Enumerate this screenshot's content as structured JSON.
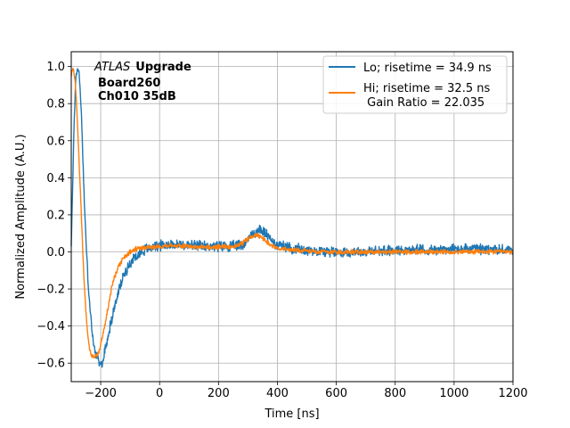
{
  "chart_data": {
    "type": "line",
    "title": "",
    "xlabel": "Time [ns]",
    "ylabel": "Normalized Amplitude (A.U.)",
    "xlim": [
      -300,
      1200
    ],
    "ylim": [
      -0.7,
      1.08
    ],
    "xticks": [
      -200,
      0,
      200,
      400,
      600,
      800,
      1000,
      1200
    ],
    "yticks": [
      -0.6,
      -0.4,
      -0.2,
      0.0,
      0.2,
      0.4,
      0.6,
      0.8,
      1.0
    ],
    "xtick_labels": [
      "−200",
      "0",
      "200",
      "400",
      "600",
      "800",
      "1000",
      "1200"
    ],
    "ytick_labels": [
      "−0.6",
      "−0.4",
      "−0.2",
      "0.0",
      "0.2",
      "0.4",
      "0.6",
      "0.8",
      "1.0"
    ],
    "grid": true,
    "legend_position": "top-right",
    "annotation": {
      "italic": "ATLAS",
      "bold": "Upgrade",
      "line2": "Board260",
      "line3": "Ch010 35dB"
    },
    "series": [
      {
        "name": "Lo; risetime = 34.9 ns",
        "color": "#1f77b4",
        "noise": 0.022,
        "x": [
          -300,
          -295,
          -290,
          -285,
          -280,
          -275,
          -270,
          -265,
          -260,
          -255,
          -250,
          -245,
          -240,
          -235,
          -230,
          -225,
          -220,
          -215,
          -210,
          -205,
          -200,
          -195,
          -190,
          -185,
          -175,
          -165,
          -150,
          -135,
          -120,
          -100,
          -80,
          -60,
          -40,
          -20,
          0,
          40,
          100,
          160,
          200,
          250,
          280,
          300,
          320,
          340,
          360,
          380,
          400,
          450,
          500,
          600,
          700,
          800,
          900,
          1000,
          1100,
          1200
        ],
        "y": [
          0.05,
          0.35,
          0.72,
          0.93,
          0.99,
          0.98,
          0.9,
          0.72,
          0.48,
          0.25,
          0.06,
          -0.1,
          -0.22,
          -0.33,
          -0.42,
          -0.49,
          -0.53,
          -0.56,
          -0.58,
          -0.6,
          -0.61,
          -0.6,
          -0.57,
          -0.53,
          -0.45,
          -0.38,
          -0.28,
          -0.19,
          -0.12,
          -0.06,
          -0.02,
          0.0,
          0.02,
          0.03,
          0.035,
          0.04,
          0.035,
          0.03,
          0.03,
          0.03,
          0.04,
          0.07,
          0.1,
          0.12,
          0.1,
          0.06,
          0.04,
          0.02,
          0.01,
          0.0,
          0.0,
          0.01,
          0.01,
          0.015,
          0.015,
          0.01
        ]
      },
      {
        "name": "Hi; risetime = 32.5 ns\n Gain Ratio = 22.035",
        "color": "#ff7f0e",
        "noise": 0.01,
        "x": [
          -300,
          -295,
          -290,
          -285,
          -280,
          -275,
          -270,
          -265,
          -260,
          -255,
          -250,
          -245,
          -240,
          -235,
          -230,
          -225,
          -220,
          -215,
          -210,
          -205,
          -200,
          -190,
          -175,
          -160,
          -140,
          -120,
          -100,
          -80,
          -60,
          -40,
          -20,
          0,
          40,
          100,
          160,
          200,
          250,
          280,
          300,
          320,
          340,
          360,
          380,
          400,
          450,
          500,
          600,
          700,
          800,
          900,
          1000,
          1100,
          1200
        ],
        "y": [
          0.95,
          0.99,
          0.96,
          0.88,
          0.74,
          0.56,
          0.37,
          0.17,
          -0.03,
          -0.2,
          -0.33,
          -0.43,
          -0.5,
          -0.54,
          -0.56,
          -0.57,
          -0.57,
          -0.565,
          -0.55,
          -0.53,
          -0.5,
          -0.43,
          -0.3,
          -0.17,
          -0.08,
          -0.03,
          0.0,
          0.015,
          0.02,
          0.025,
          0.028,
          0.03,
          0.035,
          0.03,
          0.025,
          0.025,
          0.03,
          0.045,
          0.07,
          0.09,
          0.085,
          0.06,
          0.035,
          0.02,
          0.01,
          0.005,
          0.0,
          0.0,
          0.0,
          0.0,
          0.0,
          0.0,
          0.0
        ]
      }
    ]
  }
}
